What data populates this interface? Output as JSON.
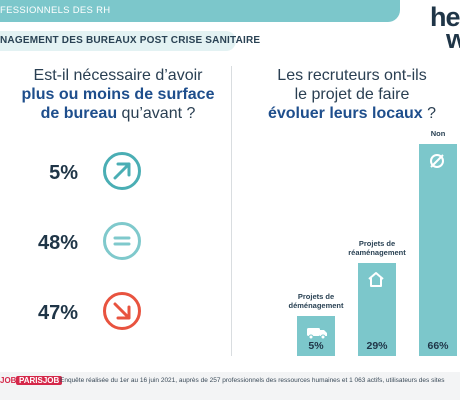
{
  "header": {
    "topbar_text": "FESSIONNELS DES RH",
    "logo_line1": "hel",
    "logo_line2": "w",
    "subbar_text": "NAGEMENT DES BUREAUX POST CRISE SANITAIRE"
  },
  "left": {
    "question_line1": "Est-il nécessaire d’avoir",
    "question_bold1": "plus ou moins de surface",
    "question_bold2": "de bureau",
    "question_end": " qu’avant ?",
    "answers": [
      {
        "value": "5%",
        "icon": "arrow-up-right-icon",
        "color": "#4aaeb4"
      },
      {
        "value": "48%",
        "icon": "equals-icon",
        "color": "#7fc9cc"
      },
      {
        "value": "47%",
        "icon": "arrow-down-right-icon",
        "color": "#e8533f"
      }
    ]
  },
  "right": {
    "question_line1": "Les recruteurs ont-ils",
    "question_line2": "le projet de faire",
    "question_bold": "évoluer leurs locaux",
    "question_end": " ?"
  },
  "chart_data": {
    "type": "bar",
    "categories": [
      "Projets de déménagement",
      "Projets de réaménagement",
      "Non"
    ],
    "category_lines": [
      [
        "Projets de",
        "déménagement"
      ],
      [
        "Projets de",
        "réaménagement"
      ],
      [
        "Non"
      ]
    ],
    "values": [
      5,
      29,
      66
    ],
    "labels": [
      "5%",
      "29%",
      "66%"
    ],
    "icons": [
      "van-icon",
      "house-icon",
      "no-icon"
    ],
    "bar_color": "#7cc7cb",
    "ylim": [
      0,
      66
    ]
  },
  "footer": {
    "logo1": "JOB",
    "logo2": "PARISJOB",
    "text": "Enquête réalisée du 1er au 16 juin 2021, auprès de 257 professionnels des ressources humaines et 1 063 actifs, utilisateurs des sites"
  }
}
